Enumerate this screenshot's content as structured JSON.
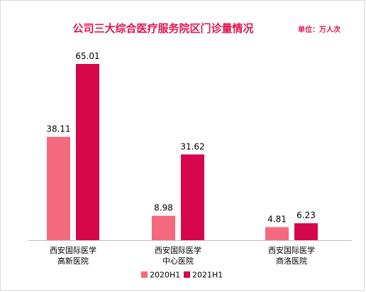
{
  "colors": {
    "title": "#e0164f",
    "unit": "#e0164f",
    "axis": "#bfbfbf",
    "text": "#000000"
  },
  "chart_data": {
    "type": "bar",
    "title": "公司三大综合医疗服务院区门诊量情况",
    "unit_label": "单位：万人次",
    "categories": [
      [
        "西安国际医学",
        "高新医院"
      ],
      [
        "西安国际医学",
        "中心医院"
      ],
      [
        "西安国际医学",
        "商洛医院"
      ]
    ],
    "series": [
      {
        "name": "2020H1",
        "values": [
          38.11,
          8.98,
          4.81
        ],
        "color": "#f4697e"
      },
      {
        "name": "2021H1",
        "values": [
          65.01,
          31.62,
          6.23
        ],
        "color": "#d6074a"
      }
    ],
    "ylim": [
      0,
      65.01
    ],
    "grid": false,
    "legend_position": "bottom"
  }
}
